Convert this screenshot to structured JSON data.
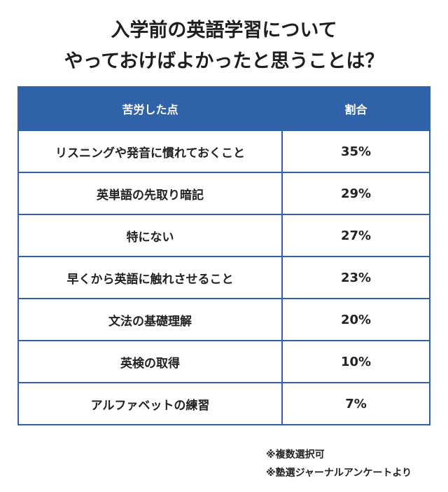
{
  "title": {
    "line1": "入学前の英語学習について",
    "line2": "やっておけばよかったと思うことは？"
  },
  "table": {
    "headers": {
      "item": "苦労した点",
      "ratio": "割合"
    },
    "rows": [
      {
        "item": "リスニングや発音に慣れておくこと",
        "ratio": "35%"
      },
      {
        "item": "英単語の先取り暗記",
        "ratio": "29%"
      },
      {
        "item": "特にない",
        "ratio": "27%"
      },
      {
        "item": "早くから英語に触れさせること",
        "ratio": "23%"
      },
      {
        "item": "文法の基礎理解",
        "ratio": "20%"
      },
      {
        "item": "英検の取得",
        "ratio": "10%"
      },
      {
        "item": "アルファベットの練習",
        "ratio": "7%"
      }
    ]
  },
  "notes": {
    "note1": "※複数選択可",
    "note2": "※塾選ジャーナルアンケートより"
  },
  "colors": {
    "header_bg": "#2f62a8",
    "header_text": "#ffffff",
    "border": "#2f62a8"
  }
}
